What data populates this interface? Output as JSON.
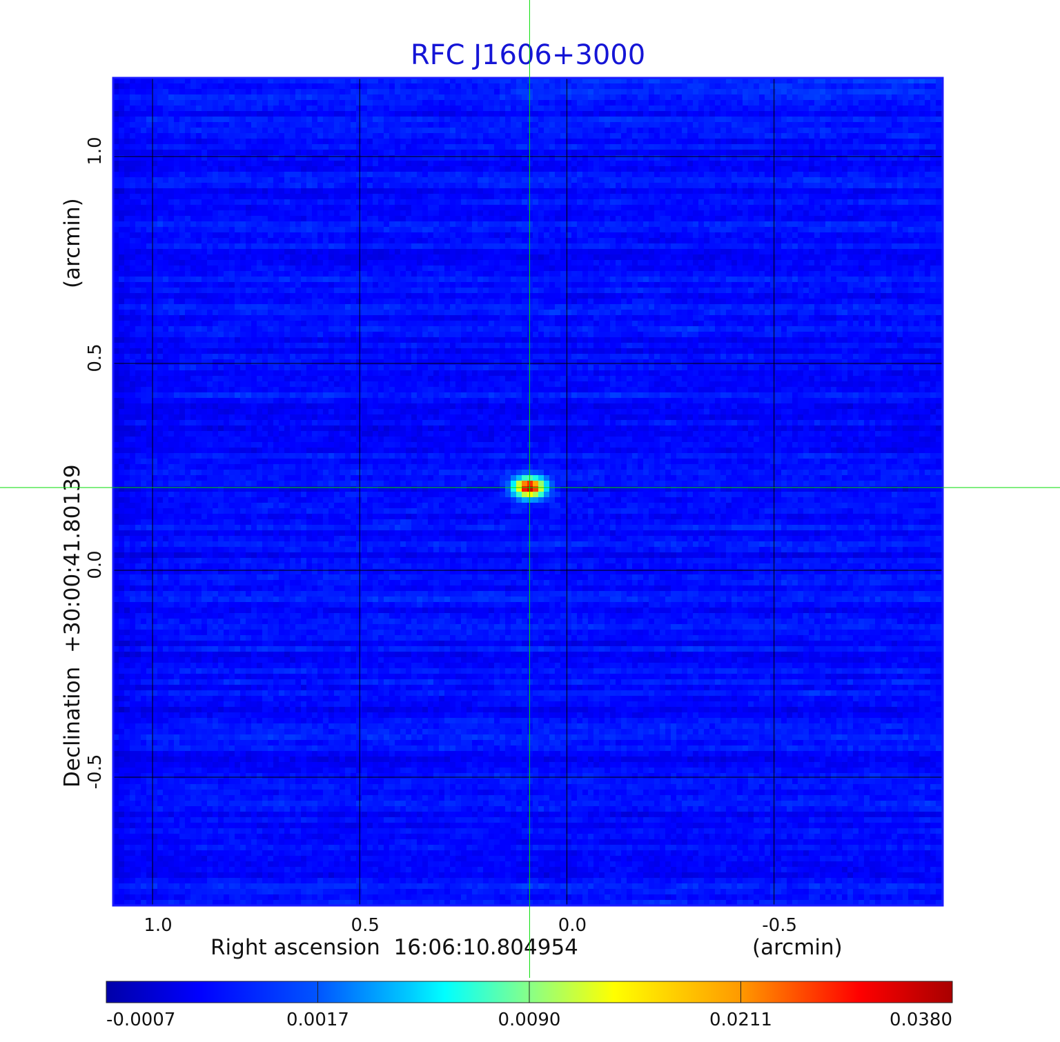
{
  "chart_data": {
    "type": "heatmap",
    "title": "RFC J1606+3000",
    "xlabel": "Right ascension  16:06:10.804954",
    "xunit": "(arcmin)",
    "ylabel": "Declination  +30:00:41.80139",
    "yunit": "(arcmin)",
    "x_ticks": [
      1.0,
      0.5,
      0.0,
      -0.5
    ],
    "x_tick_labels": [
      "1.0",
      "0.5",
      "0.0",
      "-0.5"
    ],
    "y_ticks": [
      1.0,
      0.5,
      0.0,
      -0.5
    ],
    "y_tick_labels": [
      "1.0",
      "0.5",
      "0.0",
      "-0.5"
    ],
    "xlim": [
      1.095,
      -0.907
    ],
    "ylim": [
      -0.81,
      1.19
    ],
    "grid": true,
    "colormap": "jet",
    "colorbar": {
      "placement": "bottom",
      "ticks": [
        -0.0007,
        0.0017,
        0.009,
        0.0211,
        0.038
      ],
      "tick_labels": [
        "-0.0007",
        "0.0017",
        "0.0090",
        "0.0211",
        "0.0380"
      ]
    },
    "source": {
      "x": 0.09,
      "y": 0.2,
      "peak": 0.038
    },
    "crosshair": {
      "x": 0.09,
      "y": 0.2,
      "color": "#00dd00"
    }
  }
}
